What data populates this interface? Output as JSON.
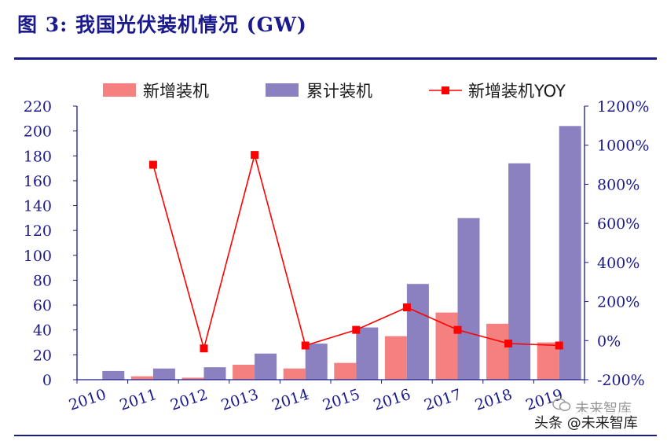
{
  "figure": {
    "title": "图 3:  我国光伏装机情况 (GW)"
  },
  "watermark": {
    "text": "头条 @未来智库",
    "ghost_text": "未来智库"
  },
  "chart_data": {
    "type": "bar",
    "title": "",
    "categories": [
      "2010",
      "2011",
      "2012",
      "2013",
      "2014",
      "2015",
      "2016",
      "2017",
      "2018",
      "2019"
    ],
    "series": [
      {
        "name": "新增装机",
        "type": "bar",
        "axis": "left",
        "color": "#f48080",
        "values": [
          null,
          2.7,
          1.6,
          12,
          9,
          13.5,
          35,
          54,
          45,
          30
        ]
      },
      {
        "name": "累计装机",
        "type": "bar",
        "axis": "left",
        "color": "#8b80c0",
        "values": [
          7,
          9,
          10,
          21,
          29,
          42,
          77,
          130,
          174,
          204
        ]
      },
      {
        "name": "新增装机YOY",
        "type": "line",
        "axis": "right",
        "color": "#ff0000",
        "marker": "square",
        "values": [
          null,
          900,
          -40,
          950,
          -25,
          55,
          170,
          55,
          -15,
          -25
        ]
      }
    ],
    "y_left": {
      "min": 0,
      "max": 220,
      "ticks": [
        0,
        20,
        40,
        60,
        80,
        100,
        120,
        140,
        160,
        180,
        200,
        220
      ]
    },
    "y_right": {
      "min": -200,
      "max": 1200,
      "ticks": [
        -200,
        0,
        200,
        400,
        600,
        800,
        1000,
        1200
      ],
      "tick_labels": [
        "-200%",
        "0%",
        "200%",
        "400%",
        "600%",
        "800%",
        "1000%",
        "1200%"
      ]
    },
    "legend": {
      "placement": "top"
    },
    "grid": false
  }
}
